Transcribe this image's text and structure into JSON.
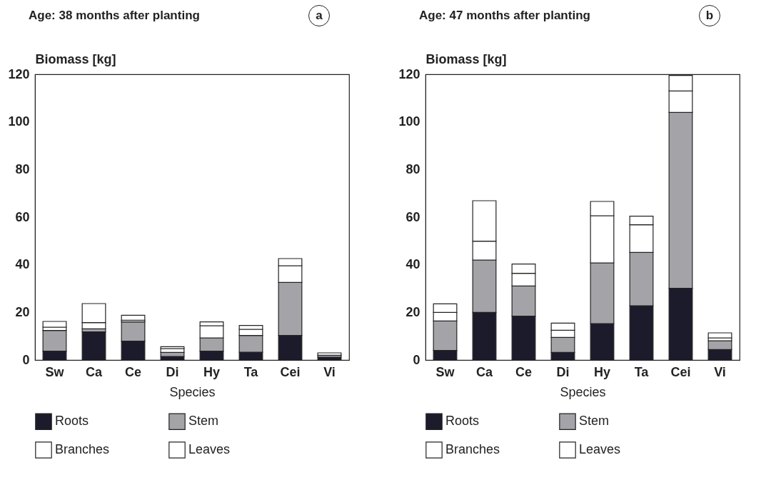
{
  "chart_data": [
    {
      "type": "bar",
      "title": "Age: 38 months after planting",
      "annotations": [
        "a"
      ],
      "xlabel": "Species",
      "ylabel": "Biomass [kg]",
      "categories": [
        "Sw",
        "Ca",
        "Ce",
        "Di",
        "Hy",
        "Ta",
        "Cei",
        "Vi"
      ],
      "stacked": true,
      "ylim": [
        0,
        120
      ],
      "yticks": [
        0,
        20,
        40,
        60,
        80,
        100,
        120
      ],
      "legend": "bottom",
      "series": [
        {
          "name": "Roots",
          "color": "#1c1b2b",
          "values": [
            3.7,
            11.8,
            7.9,
            1.5,
            3.7,
            3.3,
            10.3,
            1.2
          ]
        },
        {
          "name": "Stem",
          "color": "#a3a3a8",
          "values": [
            8.7,
            1.3,
            8.1,
            1.7,
            5.6,
            7.0,
            22.3,
            0.8
          ]
        },
        {
          "name": "Branches",
          "color": "#ffffff",
          "values": [
            1.4,
            2.6,
            0.7,
            1.6,
            5.1,
            2.6,
            7.0,
            null
          ]
        },
        {
          "name": "Leaves",
          "color": "#ffffff",
          "values": [
            2.4,
            8.0,
            2.1,
            0.8,
            1.6,
            1.6,
            3.0,
            1.0
          ]
        }
      ]
    },
    {
      "type": "bar",
      "title": "Age: 47 months after planting",
      "annotations": [
        "b"
      ],
      "xlabel": "Species",
      "ylabel": "Biomass [kg]",
      "categories": [
        "Sw",
        "Ca",
        "Ce",
        "Di",
        "Hy",
        "Ta",
        "Cei",
        "Vi"
      ],
      "stacked": true,
      "ylim": [
        0,
        120
      ],
      "yticks": [
        0,
        20,
        40,
        60,
        80,
        100,
        120
      ],
      "legend": "bottom",
      "series": [
        {
          "name": "Roots",
          "color": "#1c1b2b",
          "values": [
            4.0,
            20.0,
            18.4,
            3.2,
            15.3,
            22.8,
            30.1,
            4.4
          ]
        },
        {
          "name": "Stem",
          "color": "#a3a3a8",
          "values": [
            12.4,
            22.0,
            12.7,
            6.3,
            25.5,
            22.4,
            73.9,
            3.7
          ]
        },
        {
          "name": "Branches",
          "color": "#ffffff",
          "values": [
            3.6,
            7.9,
            5.3,
            3.0,
            19.8,
            11.6,
            9.0,
            1.2
          ]
        },
        {
          "name": "Leaves",
          "color": "#ffffff",
          "values": [
            3.6,
            17.0,
            3.9,
            3.0,
            6.0,
            3.6,
            6.5,
            2.1
          ]
        }
      ]
    }
  ]
}
